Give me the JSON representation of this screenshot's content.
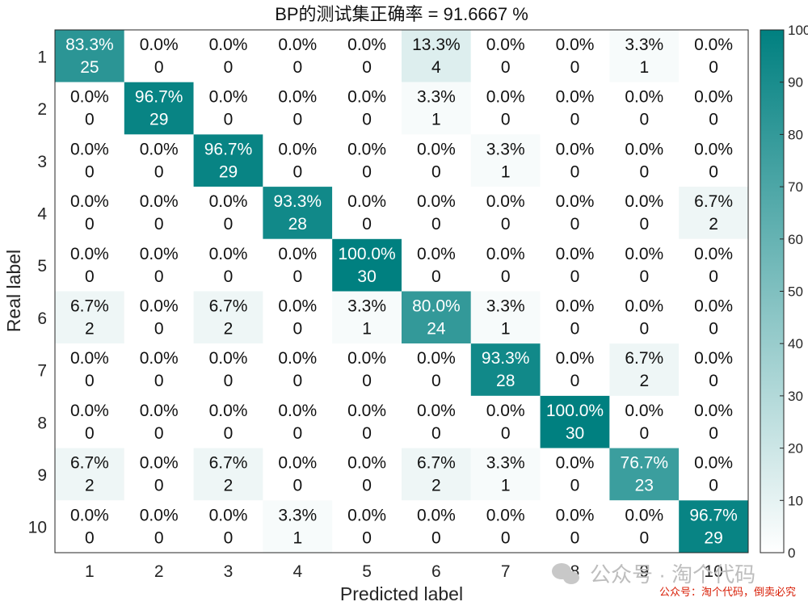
{
  "chart_data": {
    "type": "heatmap",
    "title": "BP的测试集正确率 = 91.6667 %",
    "xlabel": "Predicted label",
    "ylabel": "Real label",
    "x_categories": [
      "1",
      "2",
      "3",
      "4",
      "5",
      "6",
      "7",
      "8",
      "9",
      "10"
    ],
    "y_categories": [
      "1",
      "2",
      "3",
      "4",
      "5",
      "6",
      "7",
      "8",
      "9",
      "10"
    ],
    "percent_labels": [
      [
        "83.3%",
        "0.0%",
        "0.0%",
        "0.0%",
        "0.0%",
        "13.3%",
        "0.0%",
        "0.0%",
        "3.3%",
        "0.0%"
      ],
      [
        "0.0%",
        "96.7%",
        "0.0%",
        "0.0%",
        "0.0%",
        "3.3%",
        "0.0%",
        "0.0%",
        "0.0%",
        "0.0%"
      ],
      [
        "0.0%",
        "0.0%",
        "96.7%",
        "0.0%",
        "0.0%",
        "0.0%",
        "3.3%",
        "0.0%",
        "0.0%",
        "0.0%"
      ],
      [
        "0.0%",
        "0.0%",
        "0.0%",
        "93.3%",
        "0.0%",
        "0.0%",
        "0.0%",
        "0.0%",
        "0.0%",
        "6.7%"
      ],
      [
        "0.0%",
        "0.0%",
        "0.0%",
        "0.0%",
        "100.0%",
        "0.0%",
        "0.0%",
        "0.0%",
        "0.0%",
        "0.0%"
      ],
      [
        "6.7%",
        "0.0%",
        "6.7%",
        "0.0%",
        "3.3%",
        "80.0%",
        "3.3%",
        "0.0%",
        "0.0%",
        "0.0%"
      ],
      [
        "0.0%",
        "0.0%",
        "0.0%",
        "0.0%",
        "0.0%",
        "0.0%",
        "93.3%",
        "0.0%",
        "6.7%",
        "0.0%"
      ],
      [
        "0.0%",
        "0.0%",
        "0.0%",
        "0.0%",
        "0.0%",
        "0.0%",
        "0.0%",
        "100.0%",
        "0.0%",
        "0.0%"
      ],
      [
        "6.7%",
        "0.0%",
        "6.7%",
        "0.0%",
        "0.0%",
        "6.7%",
        "3.3%",
        "0.0%",
        "76.7%",
        "0.0%"
      ],
      [
        "0.0%",
        "0.0%",
        "0.0%",
        "3.3%",
        "0.0%",
        "0.0%",
        "0.0%",
        "0.0%",
        "0.0%",
        "96.7%"
      ]
    ],
    "percent_values": [
      [
        83.3,
        0,
        0,
        0,
        0,
        13.3,
        0,
        0,
        3.3,
        0
      ],
      [
        0,
        96.7,
        0,
        0,
        0,
        3.3,
        0,
        0,
        0,
        0
      ],
      [
        0,
        0,
        96.7,
        0,
        0,
        0,
        3.3,
        0,
        0,
        0
      ],
      [
        0,
        0,
        0,
        93.3,
        0,
        0,
        0,
        0,
        0,
        6.7
      ],
      [
        0,
        0,
        0,
        0,
        100,
        0,
        0,
        0,
        0,
        0
      ],
      [
        6.7,
        0,
        6.7,
        0,
        3.3,
        80,
        3.3,
        0,
        0,
        0
      ],
      [
        0,
        0,
        0,
        0,
        0,
        0,
        93.3,
        0,
        6.7,
        0
      ],
      [
        0,
        0,
        0,
        0,
        0,
        0,
        0,
        100,
        0,
        0
      ],
      [
        6.7,
        0,
        6.7,
        0,
        0,
        6.7,
        3.3,
        0,
        76.7,
        0
      ],
      [
        0,
        0,
        0,
        3.3,
        0,
        0,
        0,
        0,
        0,
        96.7
      ]
    ],
    "counts": [
      [
        25,
        0,
        0,
        0,
        0,
        4,
        0,
        0,
        1,
        0
      ],
      [
        0,
        29,
        0,
        0,
        0,
        1,
        0,
        0,
        0,
        0
      ],
      [
        0,
        0,
        29,
        0,
        0,
        0,
        1,
        0,
        0,
        0
      ],
      [
        0,
        0,
        0,
        28,
        0,
        0,
        0,
        0,
        0,
        2
      ],
      [
        0,
        0,
        0,
        0,
        30,
        0,
        0,
        0,
        0,
        0
      ],
      [
        2,
        0,
        2,
        0,
        1,
        24,
        1,
        0,
        0,
        0
      ],
      [
        0,
        0,
        0,
        0,
        0,
        0,
        28,
        0,
        2,
        0
      ],
      [
        0,
        0,
        0,
        0,
        0,
        0,
        0,
        30,
        0,
        0
      ],
      [
        2,
        0,
        2,
        0,
        0,
        2,
        1,
        0,
        23,
        0
      ],
      [
        0,
        0,
        0,
        1,
        0,
        0,
        0,
        0,
        0,
        29
      ]
    ],
    "colorbar": {
      "range": [
        0,
        100
      ],
      "ticks": [
        "0",
        "10",
        "20",
        "30",
        "40",
        "50",
        "60",
        "70",
        "80",
        "90",
        "100"
      ],
      "color_low": "#ffffff",
      "color_high": "#008080"
    }
  },
  "watermark": {
    "main": "公众号 · 淘个代码",
    "sub": "公众号：淘个代码，倒卖必究"
  }
}
